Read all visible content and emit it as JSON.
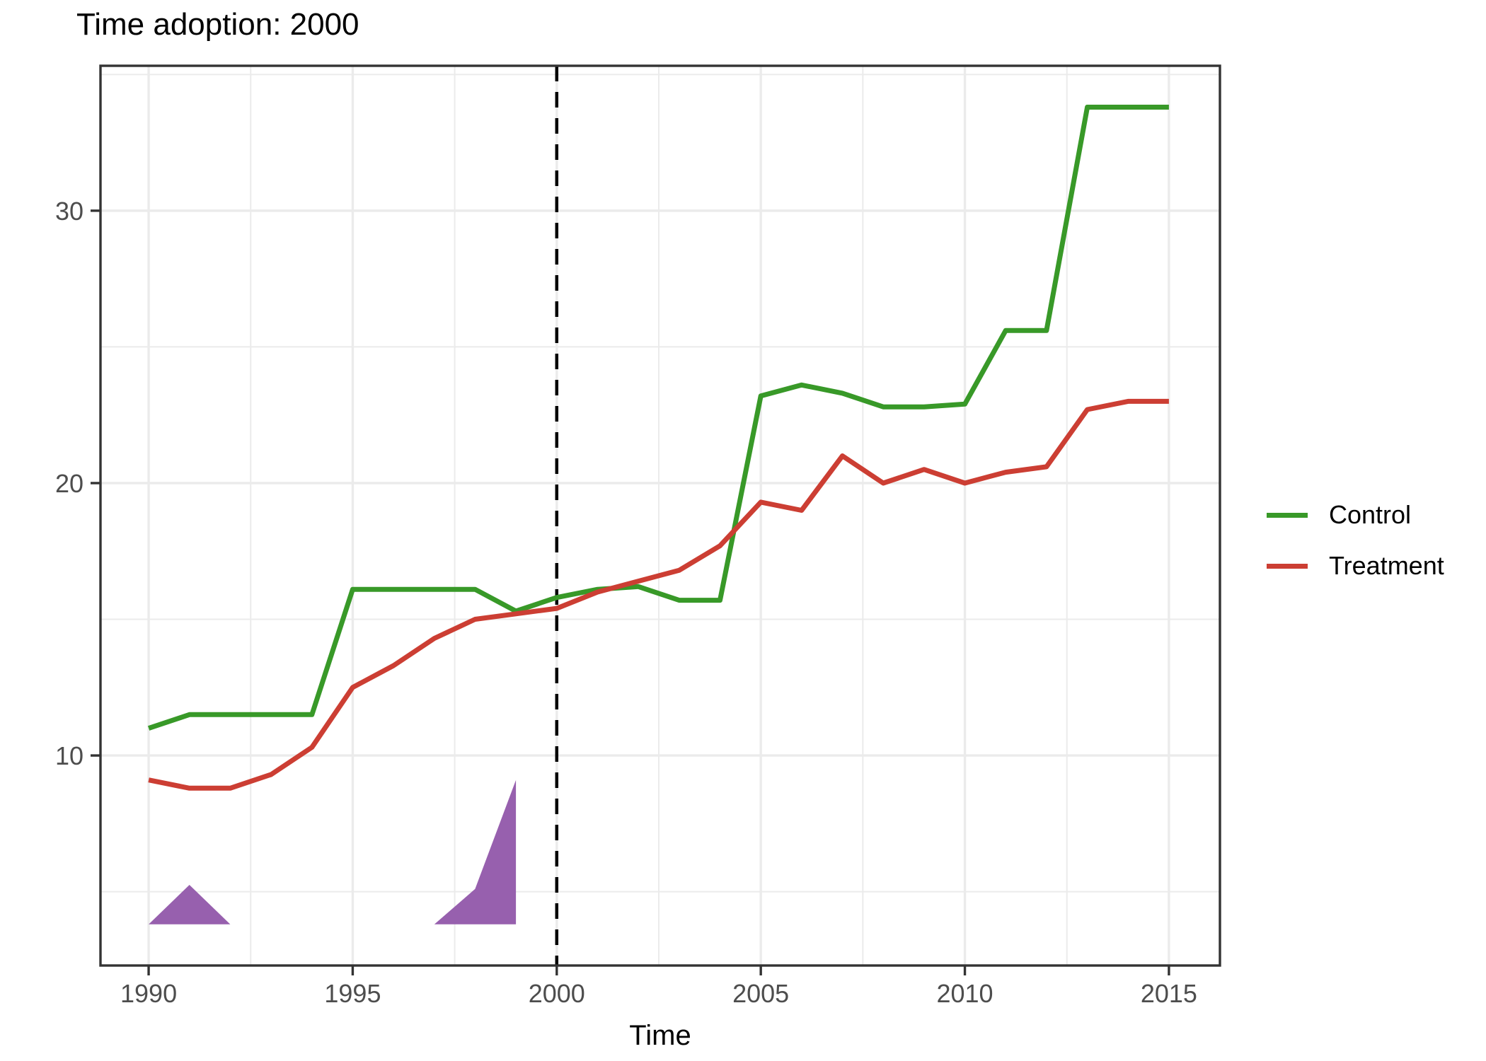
{
  "title": "Time adoption: 2000",
  "chart_data": {
    "type": "line",
    "title": "Time adoption: 2000",
    "xlabel": "Time",
    "ylabel": "",
    "x": [
      1990,
      1991,
      1992,
      1993,
      1994,
      1995,
      1996,
      1997,
      1998,
      1999,
      2000,
      2001,
      2002,
      2003,
      2004,
      2005,
      2006,
      2007,
      2008,
      2009,
      2010,
      2011,
      2012,
      2013,
      2014,
      2015
    ],
    "series": [
      {
        "name": "Control",
        "color": "#389928",
        "values": [
          11.0,
          11.5,
          11.5,
          11.5,
          11.5,
          16.1,
          16.1,
          16.1,
          16.1,
          15.3,
          15.8,
          16.1,
          16.2,
          15.7,
          15.7,
          23.2,
          23.6,
          23.3,
          22.8,
          22.8,
          22.9,
          25.6,
          25.6,
          33.8,
          33.8,
          33.8
        ]
      },
      {
        "name": "Treatment",
        "color": "#cc3e33",
        "values": [
          9.1,
          8.8,
          8.8,
          9.3,
          10.3,
          12.5,
          13.3,
          14.3,
          15.0,
          15.2,
          15.4,
          16.0,
          16.4,
          16.8,
          17.7,
          19.3,
          19.0,
          21.0,
          20.0,
          20.5,
          20.0,
          20.4,
          20.6,
          22.7,
          23.0,
          23.0
        ]
      }
    ],
    "x_ticks": [
      1990,
      1995,
      2000,
      2005,
      2010,
      2015
    ],
    "y_ticks": [
      10,
      20,
      30
    ],
    "x_minor_ticks": [
      1992.5,
      1997.5,
      2002.5,
      2007.5,
      2012.5
    ],
    "y_minor_ticks": [
      5,
      15,
      25,
      35
    ],
    "xlim": [
      1988.82,
      2016.25
    ],
    "ylim": [
      2.29,
      35.32
    ],
    "grid": "on",
    "legend_position": "right",
    "vline": {
      "x": 2000,
      "style": "dashed",
      "color": "#000000"
    },
    "annotations": [
      {
        "type": "polygon",
        "name": "adoption-density-left",
        "color": "#9760ae",
        "points": [
          [
            1990,
            3.8
          ],
          [
            1991,
            5.25
          ],
          [
            1992,
            3.8
          ]
        ]
      },
      {
        "type": "polygon",
        "name": "adoption-density-right",
        "color": "#9760ae",
        "points": [
          [
            1997,
            3.8
          ],
          [
            1998,
            5.1
          ],
          [
            1999,
            9.1
          ],
          [
            1999,
            3.8
          ]
        ]
      }
    ],
    "colors": {
      "grid": "#ebebeb",
      "panel_border": "#333333",
      "tick_mark": "#333333",
      "tick_label": "#4d4d4d"
    }
  }
}
